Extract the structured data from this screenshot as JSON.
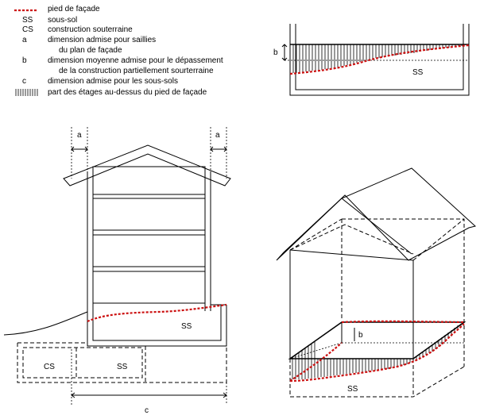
{
  "legend": [
    {
      "key": "",
      "text": "pied de façade"
    },
    {
      "key": "SS",
      "text": "sous-sol"
    },
    {
      "key": "CS",
      "text": "construction souterraine"
    },
    {
      "key": "a",
      "text": "dimension admise pour saillies"
    },
    {
      "key": "",
      "text": "du plan de façade"
    },
    {
      "key": "b",
      "text": "dimension moyenne admise pour le dépassement"
    },
    {
      "key": "",
      "text": "de la construction partiellement sourterraine"
    },
    {
      "key": "c",
      "text": "dimension admise pour les sous-sols"
    },
    {
      "key": "",
      "text": "part des étages au-dessus du pied de façade"
    }
  ],
  "labels": {
    "b": "b",
    "a": "a",
    "c": "c",
    "ss": "SS",
    "cs": "CS"
  },
  "colors": {
    "facade_line": "#cc1111",
    "line": "#000000"
  }
}
